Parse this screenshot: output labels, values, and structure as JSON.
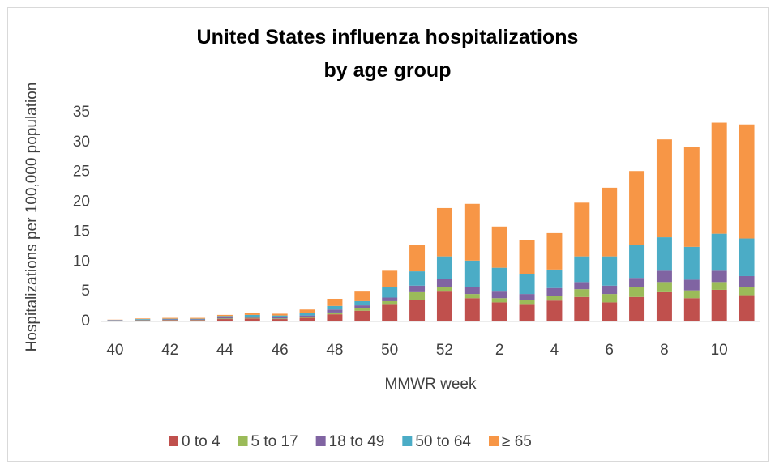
{
  "chart_data": {
    "type": "stacked_bar",
    "title": "United States influenza hospitalizations by age group",
    "x_label": "MMWR week",
    "y_label": "Hospitalizations per 100,000 population",
    "categories": [
      "40",
      null,
      "42",
      null,
      "44",
      null,
      "46",
      null,
      "48",
      null,
      "50",
      null,
      "52",
      null,
      "2",
      null,
      "4",
      null,
      "6",
      null,
      "8",
      null,
      "10",
      null
    ],
    "series": [
      {
        "name": "0 to 4",
        "color": "#c0504d",
        "values": [
          0.1,
          0.15,
          0.2,
          0.2,
          0.4,
          0.5,
          0.4,
          0.6,
          1.2,
          1.8,
          2.8,
          3.6,
          5.0,
          3.9,
          3.2,
          2.8,
          3.5,
          4.1,
          3.2,
          4.1,
          4.9,
          3.9,
          5.3,
          4.4
        ]
      },
      {
        "name": "5 to 17",
        "color": "#9bbb59",
        "values": [
          0.05,
          0.05,
          0.05,
          0.05,
          0.1,
          0.1,
          0.1,
          0.1,
          0.3,
          0.4,
          0.6,
          1.3,
          0.8,
          0.7,
          0.7,
          0.8,
          0.8,
          1.3,
          1.4,
          1.6,
          1.7,
          1.3,
          1.3,
          1.4
        ]
      },
      {
        "name": "18 to 49",
        "color": "#8064a2",
        "values": [
          0.05,
          0.1,
          0.1,
          0.1,
          0.2,
          0.2,
          0.2,
          0.3,
          0.5,
          0.5,
          0.6,
          1.1,
          1.3,
          1.2,
          1.1,
          1.0,
          1.3,
          1.2,
          1.4,
          1.6,
          1.9,
          1.8,
          1.9,
          1.8
        ]
      },
      {
        "name": "50 to 64",
        "color": "#4bacc6",
        "values": [
          0.05,
          0.1,
          0.1,
          0.1,
          0.2,
          0.3,
          0.3,
          0.4,
          0.6,
          0.7,
          1.8,
          2.4,
          3.8,
          4.4,
          4.0,
          3.4,
          3.1,
          4.3,
          4.9,
          5.5,
          5.6,
          5.5,
          6.2,
          6.3
        ]
      },
      {
        "name": "≥ 65",
        "color": "#f79646",
        "values": [
          0.05,
          0.1,
          0.15,
          0.15,
          0.2,
          0.3,
          0.3,
          0.6,
          1.2,
          1.6,
          2.7,
          4.4,
          8.1,
          9.5,
          6.9,
          5.6,
          6.1,
          9.0,
          11.5,
          12.4,
          16.4,
          16.8,
          18.6,
          19.1
        ]
      }
    ],
    "ylim": [
      0,
      35
    ],
    "yticks": [
      0,
      5,
      10,
      15,
      20,
      25,
      30,
      35
    ],
    "grid": false,
    "legend": "bottom"
  }
}
